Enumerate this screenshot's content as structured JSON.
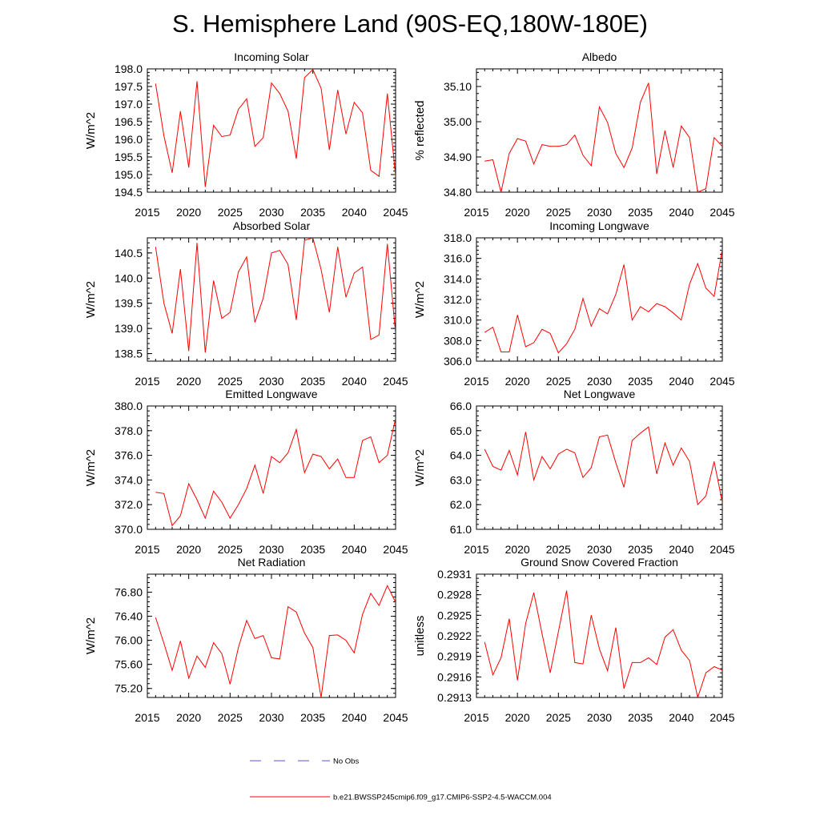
{
  "page": {
    "title": "S. Hemisphere Land (90S-EQ,180W-180E)"
  },
  "legend": {
    "obs_label": "No Obs",
    "obs_color": "#5a5adb",
    "model_label": "b.e21.BWSSP245cmip6.f09_g17.CMIP6-SSP2-4.5-WACCM.004",
    "model_color": "#ff0000"
  },
  "chart_data": [
    {
      "type": "line",
      "title": "Incoming Solar",
      "xlabel": "",
      "ylabel": "W/m^2",
      "xlim": [
        2015,
        2045
      ],
      "ylim": [
        194.5,
        198.0
      ],
      "xticks": [
        2015,
        2020,
        2025,
        2030,
        2035,
        2040,
        2045
      ],
      "yticks": [
        194.5,
        195.0,
        195.5,
        196.0,
        196.5,
        197.0,
        197.5,
        198.0
      ],
      "ytick_labels": [
        "194.5",
        "195.0",
        "195.5",
        "196.0",
        "196.5",
        "197.0",
        "197.5",
        "198.0"
      ],
      "x": [
        2016,
        2017,
        2018,
        2019,
        2020,
        2021,
        2022,
        2023,
        2024,
        2025,
        2026,
        2027,
        2028,
        2029,
        2030,
        2031,
        2032,
        2033,
        2034,
        2035,
        2036,
        2037,
        2038,
        2039,
        2040,
        2041,
        2042,
        2043,
        2044,
        2045
      ],
      "values": [
        197.58,
        196.1,
        195.05,
        196.8,
        195.2,
        197.65,
        194.65,
        196.4,
        196.08,
        196.12,
        196.85,
        197.15,
        195.8,
        196.05,
        197.6,
        197.3,
        196.8,
        195.45,
        197.75,
        197.98,
        197.45,
        195.7,
        197.4,
        196.15,
        197.05,
        196.75,
        195.12,
        194.95,
        197.3,
        194.95
      ],
      "series_name": "b.e21.BWSSP245cmip6.f09_g17.CMIP6-SSP2-4.5-WACCM.004"
    },
    {
      "type": "line",
      "title": "Albedo",
      "xlabel": "",
      "ylabel": "% reflected",
      "xlim": [
        2015,
        2045
      ],
      "ylim": [
        34.8,
        35.15
      ],
      "xticks": [
        2015,
        2020,
        2025,
        2030,
        2035,
        2040,
        2045
      ],
      "yticks": [
        34.8,
        34.9,
        35.0,
        35.1
      ],
      "ytick_labels": [
        "34.80",
        "34.90",
        "35.00",
        "35.10"
      ],
      "x": [
        2016,
        2017,
        2018,
        2019,
        2020,
        2021,
        2022,
        2023,
        2024,
        2025,
        2026,
        2027,
        2028,
        2029,
        2030,
        2031,
        2032,
        2033,
        2034,
        2035,
        2036,
        2037,
        2038,
        2039,
        2040,
        2041,
        2042,
        2043,
        2044,
        2045
      ],
      "values": [
        34.888,
        34.892,
        34.8,
        34.91,
        34.952,
        34.945,
        34.88,
        34.935,
        34.93,
        34.93,
        34.935,
        34.962,
        34.905,
        34.875,
        35.042,
        34.998,
        34.91,
        34.87,
        34.925,
        35.055,
        35.11,
        34.852,
        34.975,
        34.87,
        34.988,
        34.955,
        34.8,
        34.81,
        34.955,
        34.93
      ],
      "series_name": "b.e21.BWSSP245cmip6.f09_g17.CMIP6-SSP2-4.5-WACCM.004"
    },
    {
      "type": "line",
      "title": "Absorbed Solar",
      "xlabel": "",
      "ylabel": "W/m^2",
      "xlim": [
        2015,
        2045
      ],
      "ylim": [
        138.35,
        140.8
      ],
      "xticks": [
        2015,
        2020,
        2025,
        2030,
        2035,
        2040,
        2045
      ],
      "yticks": [
        138.5,
        139.0,
        139.5,
        140.0,
        140.5
      ],
      "ytick_labels": [
        "138.5",
        "139.0",
        "139.5",
        "140.0",
        "140.5"
      ],
      "x": [
        2016,
        2017,
        2018,
        2019,
        2020,
        2021,
        2022,
        2023,
        2024,
        2025,
        2026,
        2027,
        2028,
        2029,
        2030,
        2031,
        2032,
        2033,
        2034,
        2035,
        2036,
        2037,
        2038,
        2039,
        2040,
        2041,
        2042,
        2043,
        2044,
        2045
      ],
      "values": [
        140.62,
        139.5,
        138.9,
        140.18,
        138.55,
        140.7,
        138.52,
        139.95,
        139.2,
        139.32,
        140.12,
        140.42,
        139.12,
        139.6,
        140.5,
        140.55,
        140.27,
        139.17,
        140.75,
        140.8,
        140.17,
        139.32,
        140.62,
        139.62,
        140.1,
        140.22,
        138.78,
        138.87,
        140.68,
        138.9
      ],
      "series_name": "b.e21.BWSSP245cmip6.f09_g17.CMIP6-SSP2-4.5-WACCM.004"
    },
    {
      "type": "line",
      "title": "Incoming Longwave",
      "xlabel": "",
      "ylabel": "W/m^2",
      "xlim": [
        2015,
        2045
      ],
      "ylim": [
        306.0,
        318.0
      ],
      "xticks": [
        2015,
        2020,
        2025,
        2030,
        2035,
        2040,
        2045
      ],
      "yticks": [
        306,
        308,
        310,
        312,
        314,
        316,
        318
      ],
      "ytick_labels": [
        "306.0",
        "308.0",
        "310.0",
        "312.0",
        "314.0",
        "316.0",
        "318.0"
      ],
      "x": [
        2016,
        2017,
        2018,
        2019,
        2020,
        2021,
        2022,
        2023,
        2024,
        2025,
        2026,
        2027,
        2028,
        2029,
        2030,
        2031,
        2032,
        2033,
        2034,
        2035,
        2036,
        2037,
        2038,
        2039,
        2040,
        2041,
        2042,
        2043,
        2044,
        2045
      ],
      "values": [
        308.8,
        309.3,
        306.9,
        306.9,
        310.5,
        307.4,
        307.8,
        309.1,
        308.7,
        306.8,
        307.7,
        309.1,
        312.1,
        309.4,
        311.1,
        310.6,
        312.5,
        315.4,
        310.0,
        311.3,
        310.8,
        311.6,
        311.3,
        310.7,
        310.0,
        313.5,
        315.5,
        313.1,
        312.3,
        316.9
      ],
      "series_name": "b.e21.BWSSP245cmip6.f09_g17.CMIP6-SSP2-4.5-WACCM.004"
    },
    {
      "type": "line",
      "title": "Emitted Longwave",
      "xlabel": "",
      "ylabel": "W/m^2",
      "xlim": [
        2015,
        2045
      ],
      "ylim": [
        370.0,
        380.0
      ],
      "xticks": [
        2015,
        2020,
        2025,
        2030,
        2035,
        2040,
        2045
      ],
      "yticks": [
        370,
        372,
        374,
        376,
        378,
        380
      ],
      "ytick_labels": [
        "370.0",
        "372.0",
        "374.0",
        "376.0",
        "378.0",
        "380.0"
      ],
      "x": [
        2016,
        2017,
        2018,
        2019,
        2020,
        2021,
        2022,
        2023,
        2024,
        2025,
        2026,
        2027,
        2028,
        2029,
        2030,
        2031,
        2032,
        2033,
        2034,
        2035,
        2036,
        2037,
        2038,
        2039,
        2040,
        2041,
        2042,
        2043,
        2044,
        2045
      ],
      "values": [
        373.0,
        372.9,
        370.3,
        371.1,
        373.7,
        372.4,
        370.9,
        373.1,
        372.2,
        370.9,
        372.0,
        373.3,
        375.2,
        372.9,
        375.9,
        375.4,
        376.2,
        378.1,
        374.6,
        376.1,
        375.9,
        374.9,
        375.7,
        374.2,
        374.2,
        377.2,
        377.5,
        375.4,
        376.0,
        379.0
      ],
      "series_name": "b.e21.BWSSP245cmip6.f09_g17.CMIP6-SSP2-4.5-WACCM.004"
    },
    {
      "type": "line",
      "title": "Net Longwave",
      "xlabel": "",
      "ylabel": "W/m^2",
      "xlim": [
        2015,
        2045
      ],
      "ylim": [
        61.0,
        66.0
      ],
      "xticks": [
        2015,
        2020,
        2025,
        2030,
        2035,
        2040,
        2045
      ],
      "yticks": [
        61,
        62,
        63,
        64,
        65,
        66
      ],
      "ytick_labels": [
        "61.0",
        "62.0",
        "63.0",
        "64.0",
        "65.0",
        "66.0"
      ],
      "x": [
        2016,
        2017,
        2018,
        2019,
        2020,
        2021,
        2022,
        2023,
        2024,
        2025,
        2026,
        2027,
        2028,
        2029,
        2030,
        2031,
        2032,
        2033,
        2034,
        2035,
        2036,
        2037,
        2038,
        2039,
        2040,
        2041,
        2042,
        2043,
        2044,
        2045
      ],
      "values": [
        64.25,
        63.55,
        63.4,
        64.2,
        63.2,
        64.95,
        63.0,
        63.95,
        63.45,
        64.05,
        64.25,
        64.1,
        63.1,
        63.5,
        64.75,
        64.82,
        63.7,
        62.7,
        64.6,
        64.9,
        65.15,
        63.25,
        64.5,
        63.6,
        64.3,
        63.75,
        62.0,
        62.35,
        63.75,
        62.1
      ],
      "series_name": "b.e21.BWSSP245cmip6.f09_g17.CMIP6-SSP2-4.5-WACCM.004"
    },
    {
      "type": "line",
      "title": "Net Radiation",
      "xlabel": "",
      "ylabel": "W/m^2",
      "xlim": [
        2015,
        2045
      ],
      "ylim": [
        75.05,
        77.1
      ],
      "xticks": [
        2015,
        2020,
        2025,
        2030,
        2035,
        2040,
        2045
      ],
      "yticks": [
        75.2,
        75.6,
        76.0,
        76.4,
        76.8
      ],
      "ytick_labels": [
        "75.20",
        "75.60",
        "76.00",
        "76.40",
        "76.80"
      ],
      "x": [
        2016,
        2017,
        2018,
        2019,
        2020,
        2021,
        2022,
        2023,
        2024,
        2025,
        2026,
        2027,
        2028,
        2029,
        2030,
        2031,
        2032,
        2033,
        2034,
        2035,
        2036,
        2037,
        2038,
        2039,
        2040,
        2041,
        2042,
        2043,
        2044,
        2045
      ],
      "values": [
        76.38,
        75.95,
        75.5,
        75.99,
        75.37,
        75.74,
        75.55,
        75.96,
        75.78,
        75.27,
        75.88,
        76.33,
        76.03,
        76.08,
        75.71,
        75.69,
        76.56,
        76.47,
        76.12,
        75.88,
        75.05,
        76.08,
        76.09,
        76.0,
        75.79,
        76.43,
        76.78,
        76.58,
        76.91,
        76.63
      ],
      "series_name": "b.e21.BWSSP245cmip6.f09_g17.CMIP6-SSP2-4.5-WACCM.004"
    },
    {
      "type": "line",
      "title": "Ground Snow Covered Fraction",
      "xlabel": "",
      "ylabel": "unitless",
      "xlim": [
        2015,
        2045
      ],
      "ylim": [
        0.2913,
        0.2931
      ],
      "xticks": [
        2015,
        2020,
        2025,
        2030,
        2035,
        2040,
        2045
      ],
      "yticks": [
        0.2913,
        0.2916,
        0.2919,
        0.2922,
        0.2925,
        0.2928,
        0.2931
      ],
      "ytick_labels": [
        "0.2913",
        "0.2916",
        "0.2919",
        "0.2922",
        "0.2925",
        "0.2928",
        "0.2931"
      ],
      "x": [
        2016,
        2017,
        2018,
        2019,
        2020,
        2021,
        2022,
        2023,
        2024,
        2025,
        2026,
        2027,
        2028,
        2029,
        2030,
        2031,
        2032,
        2033,
        2034,
        2035,
        2036,
        2037,
        2038,
        2039,
        2040,
        2041,
        2042,
        2043,
        2044,
        2045
      ],
      "values": [
        0.29211,
        0.29163,
        0.29188,
        0.29245,
        0.29155,
        0.29238,
        0.29283,
        0.29223,
        0.29166,
        0.29226,
        0.29286,
        0.29181,
        0.29179,
        0.2925,
        0.29201,
        0.29169,
        0.29232,
        0.29143,
        0.29181,
        0.29181,
        0.29188,
        0.29178,
        0.29218,
        0.29229,
        0.29199,
        0.29184,
        0.2913,
        0.29166,
        0.29175,
        0.2917
      ],
      "series_name": "b.e21.BWSSP245cmip6.f09_g17.CMIP6-SSP2-4.5-WACCM.004"
    }
  ]
}
